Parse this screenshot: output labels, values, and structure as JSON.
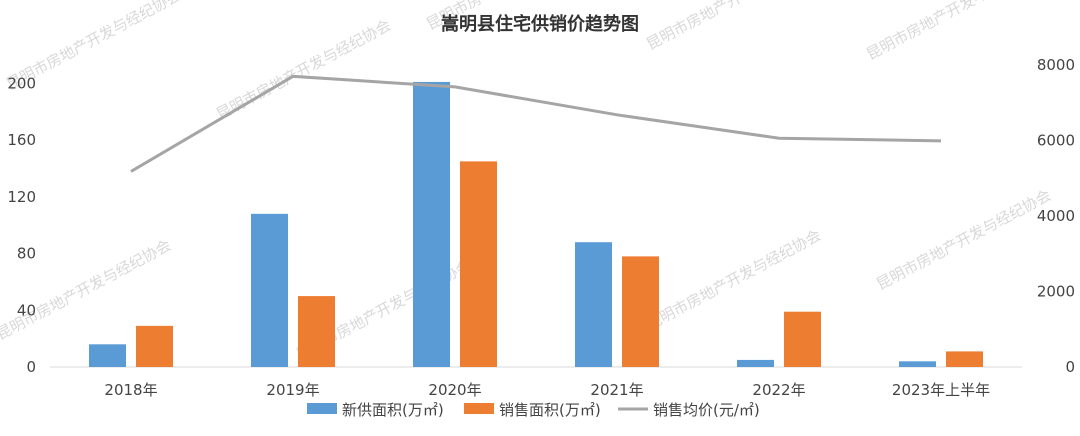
{
  "chart_data": {
    "type": "bar",
    "title": "嵩明县住宅供销价趋势图",
    "categories": [
      "2018年",
      "2019年",
      "2020年",
      "2021年",
      "2022年",
      "2023年上半年"
    ],
    "series": [
      {
        "name": "新供面积(万㎡)",
        "kind": "bar",
        "axis": "left",
        "color": "#5b9bd5",
        "values": [
          16,
          108,
          201,
          88,
          5,
          4
        ]
      },
      {
        "name": "销售面积(万㎡)",
        "kind": "bar",
        "axis": "left",
        "color": "#ed7d31",
        "values": [
          29,
          50,
          145,
          78,
          39,
          11
        ]
      }
    ],
    "line_series": {
      "name": "销售均价(元/㎡)",
      "kind": "line",
      "axis": "right",
      "color": "#a5a5a5",
      "values": [
        5180,
        7700,
        7420,
        6680,
        6060,
        5990
      ]
    },
    "left_axis": {
      "ticks": [
        0,
        40,
        80,
        120,
        160,
        200
      ],
      "range": [
        0,
        220
      ]
    },
    "right_axis": {
      "ticks": [
        0,
        2000,
        4000,
        6000,
        8000
      ],
      "range": [
        0,
        8000
      ]
    },
    "legend_position": "bottom",
    "grid": false
  },
  "watermark": "昆明市房地产开发与经纪协会"
}
